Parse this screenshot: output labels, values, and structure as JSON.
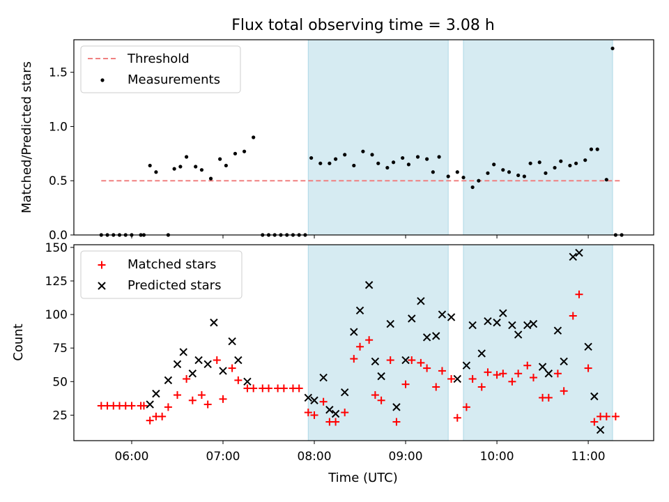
{
  "title": "Flux total observing time = 3.08 h",
  "colors": {
    "threshold": "#f08080",
    "measurement": "#000000",
    "matched": "#ff0000",
    "predicted": "#000000",
    "shade": "#add8e6"
  },
  "chart_data": [
    {
      "type": "scatter",
      "ylabel": "Matched/Predicted stars",
      "xlim": [
        "05:22",
        "11:43"
      ],
      "ylim": [
        0,
        1.8
      ],
      "yticks": [
        "0.0",
        "0.5",
        "1.0",
        "1.5"
      ],
      "shaded_intervals": [
        [
          "07:56",
          "09:28"
        ],
        [
          "09:38",
          "11:16"
        ]
      ],
      "legend": {
        "position": "upper left",
        "entries": [
          "Threshold",
          "Measurements"
        ]
      },
      "threshold": {
        "name": "Threshold",
        "value": 0.5,
        "x_range": [
          "05:40",
          "11:21"
        ]
      },
      "series": [
        {
          "name": "Measurements",
          "points": [
            [
              "05:40",
              0
            ],
            [
              "05:44",
              0
            ],
            [
              "05:48",
              0
            ],
            [
              "05:52",
              0
            ],
            [
              "05:56",
              0
            ],
            [
              "06:00",
              0
            ],
            [
              "06:06",
              0
            ],
            [
              "06:08",
              0
            ],
            [
              "06:12",
              0.64
            ],
            [
              "06:16",
              0.58
            ],
            [
              "06:24",
              0
            ],
            [
              "06:28",
              0.61
            ],
            [
              "06:32",
              0.63
            ],
            [
              "06:36",
              0.72
            ],
            [
              "06:42",
              0.63
            ],
            [
              "06:46",
              0.6
            ],
            [
              "06:52",
              0.52
            ],
            [
              "06:58",
              0.7
            ],
            [
              "07:02",
              0.64
            ],
            [
              "07:08",
              0.75
            ],
            [
              "07:14",
              0.77
            ],
            [
              "07:20",
              0.9
            ],
            [
              "07:26",
              0
            ],
            [
              "07:30",
              0
            ],
            [
              "07:34",
              0
            ],
            [
              "07:38",
              0
            ],
            [
              "07:42",
              0
            ],
            [
              "07:46",
              0
            ],
            [
              "07:50",
              0
            ],
            [
              "07:54",
              0
            ],
            [
              "07:58",
              0.71
            ],
            [
              "08:04",
              0.66
            ],
            [
              "08:10",
              0.66
            ],
            [
              "08:14",
              0.7
            ],
            [
              "08:20",
              0.74
            ],
            [
              "08:26",
              0.64
            ],
            [
              "08:32",
              0.77
            ],
            [
              "08:38",
              0.74
            ],
            [
              "08:42",
              0.66
            ],
            [
              "08:48",
              0.62
            ],
            [
              "08:52",
              0.67
            ],
            [
              "08:58",
              0.71
            ],
            [
              "09:02",
              0.65
            ],
            [
              "09:08",
              0.72
            ],
            [
              "09:14",
              0.7
            ],
            [
              "09:18",
              0.58
            ],
            [
              "09:22",
              0.72
            ],
            [
              "09:28",
              0.54
            ],
            [
              "09:34",
              0.58
            ],
            [
              "09:38",
              0.53
            ],
            [
              "09:44",
              0.44
            ],
            [
              "09:48",
              0.5
            ],
            [
              "09:54",
              0.57
            ],
            [
              "09:58",
              0.65
            ],
            [
              "10:04",
              0.6
            ],
            [
              "10:08",
              0.58
            ],
            [
              "10:14",
              0.55
            ],
            [
              "10:18",
              0.54
            ],
            [
              "10:22",
              0.66
            ],
            [
              "10:28",
              0.67
            ],
            [
              "10:32",
              0.57
            ],
            [
              "10:38",
              0.62
            ],
            [
              "10:42",
              0.68
            ],
            [
              "10:48",
              0.64
            ],
            [
              "10:52",
              0.66
            ],
            [
              "10:58",
              0.69
            ],
            [
              "11:02",
              0.79
            ],
            [
              "11:06",
              0.79
            ],
            [
              "11:12",
              0.51
            ],
            [
              "11:16",
              1.72
            ],
            [
              "11:18",
              0
            ],
            [
              "11:22",
              0
            ]
          ]
        }
      ]
    },
    {
      "type": "scatter",
      "ylabel": "Count",
      "xlabel": "Time (UTC)",
      "xlim": [
        "05:22",
        "11:43"
      ],
      "ylim": [
        6,
        152
      ],
      "yticks": [
        "25",
        "50",
        "75",
        "100",
        "125",
        "150"
      ],
      "xticks": [
        "06:00",
        "07:00",
        "08:00",
        "09:00",
        "10:00",
        "11:00"
      ],
      "shaded_intervals": [
        [
          "07:56",
          "09:28"
        ],
        [
          "09:38",
          "11:16"
        ]
      ],
      "legend": {
        "position": "upper left",
        "entries": [
          "Matched stars",
          "Predicted stars"
        ]
      },
      "series": [
        {
          "name": "Matched stars",
          "marker": "+",
          "points": [
            [
              "05:40",
              32
            ],
            [
              "05:44",
              32
            ],
            [
              "05:48",
              32
            ],
            [
              "05:52",
              32
            ],
            [
              "05:56",
              32
            ],
            [
              "06:00",
              32
            ],
            [
              "06:06",
              32
            ],
            [
              "06:08",
              32
            ],
            [
              "06:12",
              21
            ],
            [
              "06:16",
              24
            ],
            [
              "06:20",
              24
            ],
            [
              "06:24",
              31
            ],
            [
              "06:30",
              40
            ],
            [
              "06:36",
              52
            ],
            [
              "06:40",
              36
            ],
            [
              "06:46",
              40
            ],
            [
              "06:50",
              33
            ],
            [
              "06:56",
              66
            ],
            [
              "07:00",
              37
            ],
            [
              "07:06",
              60
            ],
            [
              "07:10",
              51
            ],
            [
              "07:16",
              45
            ],
            [
              "07:20",
              45
            ],
            [
              "07:26",
              45
            ],
            [
              "07:30",
              45
            ],
            [
              "07:36",
              45
            ],
            [
              "07:40",
              45
            ],
            [
              "07:46",
              45
            ],
            [
              "07:50",
              45
            ],
            [
              "07:56",
              27
            ],
            [
              "08:00",
              25
            ],
            [
              "08:06",
              35
            ],
            [
              "08:10",
              20
            ],
            [
              "08:14",
              20
            ],
            [
              "08:20",
              27
            ],
            [
              "08:26",
              67
            ],
            [
              "08:30",
              76
            ],
            [
              "08:36",
              81
            ],
            [
              "08:40",
              40
            ],
            [
              "08:44",
              36
            ],
            [
              "08:50",
              66
            ],
            [
              "08:54",
              20
            ],
            [
              "09:00",
              48
            ],
            [
              "09:04",
              66
            ],
            [
              "09:10",
              64
            ],
            [
              "09:14",
              60
            ],
            [
              "09:20",
              46
            ],
            [
              "09:24",
              58
            ],
            [
              "09:30",
              52
            ],
            [
              "09:34",
              23
            ],
            [
              "09:40",
              31
            ],
            [
              "09:44",
              52
            ],
            [
              "09:50",
              46
            ],
            [
              "09:54",
              57
            ],
            [
              "10:00",
              55
            ],
            [
              "10:04",
              56
            ],
            [
              "10:10",
              50
            ],
            [
              "10:14",
              56
            ],
            [
              "10:20",
              62
            ],
            [
              "10:24",
              53
            ],
            [
              "10:30",
              38
            ],
            [
              "10:34",
              38
            ],
            [
              "10:40",
              56
            ],
            [
              "10:44",
              43
            ],
            [
              "10:50",
              99
            ],
            [
              "10:54",
              115
            ],
            [
              "11:00",
              60
            ],
            [
              "11:04",
              20
            ],
            [
              "11:08",
              24
            ],
            [
              "11:12",
              24
            ],
            [
              "11:18",
              24
            ]
          ]
        },
        {
          "name": "Predicted stars",
          "marker": "x",
          "points": [
            [
              "06:12",
              33
            ],
            [
              "06:16",
              41
            ],
            [
              "06:24",
              51
            ],
            [
              "06:30",
              63
            ],
            [
              "06:34",
              72
            ],
            [
              "06:40",
              56
            ],
            [
              "06:44",
              66
            ],
            [
              "06:50",
              63
            ],
            [
              "06:54",
              94
            ],
            [
              "07:00",
              58
            ],
            [
              "07:06",
              80
            ],
            [
              "07:10",
              66
            ],
            [
              "07:16",
              50
            ],
            [
              "07:56",
              38
            ],
            [
              "08:00",
              36
            ],
            [
              "08:06",
              53
            ],
            [
              "08:10",
              29
            ],
            [
              "08:14",
              26
            ],
            [
              "08:20",
              42
            ],
            [
              "08:26",
              87
            ],
            [
              "08:30",
              103
            ],
            [
              "08:36",
              122
            ],
            [
              "08:40",
              65
            ],
            [
              "08:44",
              54
            ],
            [
              "08:50",
              93
            ],
            [
              "08:54",
              31
            ],
            [
              "09:00",
              66
            ],
            [
              "09:04",
              97
            ],
            [
              "09:10",
              110
            ],
            [
              "09:14",
              83
            ],
            [
              "09:20",
              84
            ],
            [
              "09:24",
              100
            ],
            [
              "09:30",
              98
            ],
            [
              "09:34",
              52
            ],
            [
              "09:40",
              62
            ],
            [
              "09:44",
              92
            ],
            [
              "09:50",
              71
            ],
            [
              "09:54",
              95
            ],
            [
              "10:00",
              94
            ],
            [
              "10:04",
              101
            ],
            [
              "10:10",
              92
            ],
            [
              "10:14",
              85
            ],
            [
              "10:20",
              92
            ],
            [
              "10:24",
              93
            ],
            [
              "10:30",
              61
            ],
            [
              "10:34",
              56
            ],
            [
              "10:40",
              88
            ],
            [
              "10:44",
              65
            ],
            [
              "10:50",
              143
            ],
            [
              "10:54",
              146
            ],
            [
              "11:00",
              76
            ],
            [
              "11:04",
              39
            ],
            [
              "11:08",
              14
            ]
          ]
        }
      ]
    }
  ]
}
